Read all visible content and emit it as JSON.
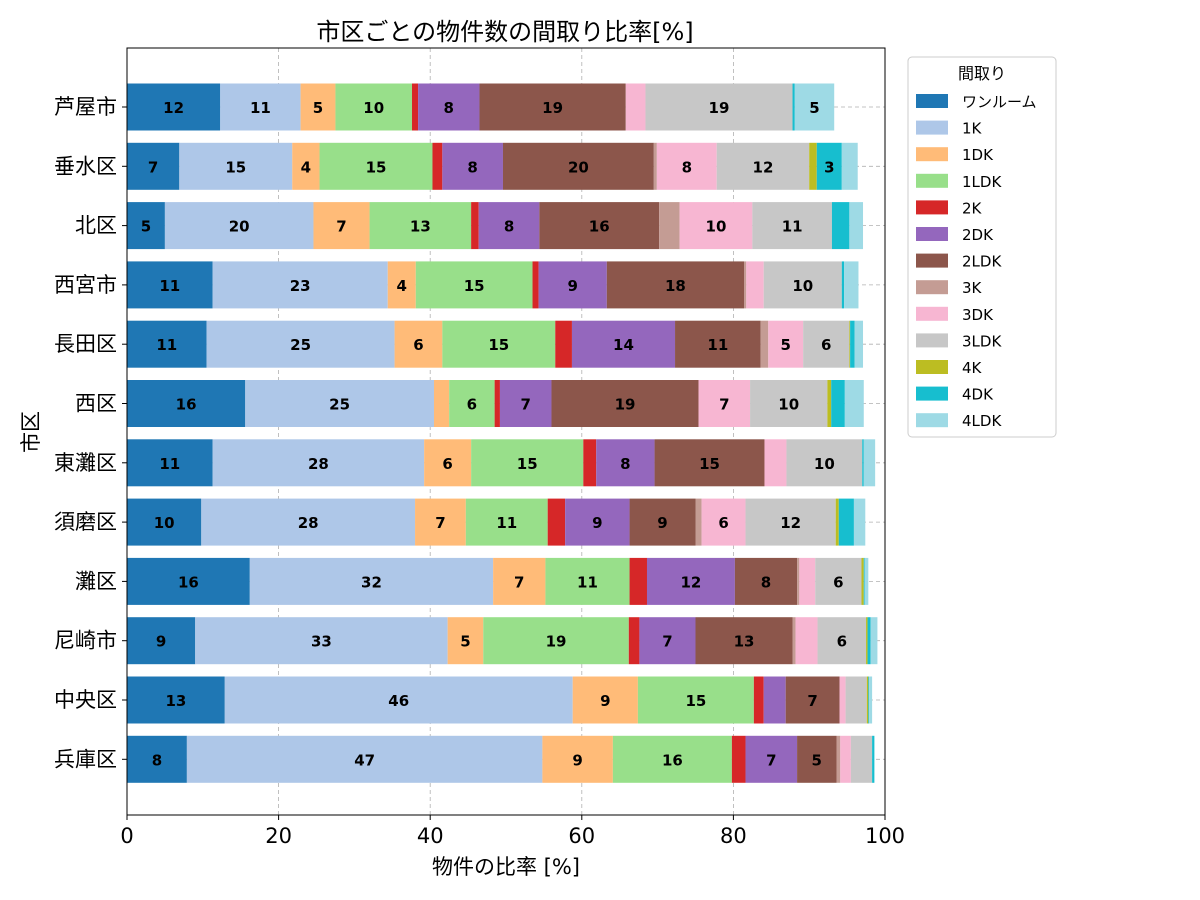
{
  "chart_data": {
    "type": "bar",
    "orientation": "horizontal",
    "stacked": true,
    "title": "市区ごとの物件数の間取り比率[%]",
    "xlabel": "物件の比率 [%]",
    "ylabel": "市区",
    "xlim": [
      0,
      100
    ],
    "xticks": [
      "0",
      "20",
      "40",
      "60",
      "80",
      "100"
    ],
    "grid": true,
    "legend_title": "間取り",
    "legend_position": "upper-right, outside plot",
    "categories": [
      "芦屋市",
      "垂水区",
      "北区",
      "西宮市",
      "長田区",
      "西区",
      "東灘区",
      "須磨区",
      "灘区",
      "尼崎市",
      "中央区",
      "兵庫区"
    ],
    "series": [
      {
        "name": "ワンルーム",
        "color": "#1f77b4",
        "values": [
          12.3,
          6.9,
          5.0,
          11.3,
          10.5,
          15.6,
          11.3,
          9.8,
          16.2,
          9.0,
          12.9,
          7.9
        ]
      },
      {
        "name": "1K",
        "color": "#aec7e8",
        "values": [
          10.6,
          14.9,
          19.6,
          23.1,
          24.8,
          24.9,
          27.9,
          28.2,
          32.1,
          33.3,
          45.9,
          46.9
        ]
      },
      {
        "name": "1DK",
        "color": "#ffbb78",
        "values": [
          4.6,
          3.6,
          7.4,
          3.7,
          6.3,
          2.0,
          6.2,
          6.7,
          6.9,
          4.7,
          8.6,
          9.3
        ]
      },
      {
        "name": "1LDK",
        "color": "#98df8a",
        "values": [
          10.1,
          14.9,
          13.4,
          15.4,
          14.9,
          6.0,
          14.8,
          10.8,
          11.1,
          19.2,
          15.3,
          15.7
        ]
      },
      {
        "name": "2K",
        "color": "#d62728",
        "values": [
          0.8,
          1.3,
          1.0,
          0.8,
          2.2,
          0.7,
          1.7,
          2.3,
          2.3,
          1.4,
          1.3,
          1.8
        ]
      },
      {
        "name": "2DK",
        "color": "#9467bd",
        "values": [
          8.1,
          8.0,
          8.0,
          9.0,
          13.6,
          6.8,
          7.7,
          8.5,
          11.6,
          7.4,
          2.9,
          6.8
        ]
      },
      {
        "name": "2LDK",
        "color": "#8c564b",
        "values": [
          19.3,
          19.9,
          15.8,
          18.1,
          11.3,
          19.4,
          14.5,
          8.7,
          8.2,
          12.8,
          7.1,
          5.2
        ]
      },
      {
        "name": "3K",
        "color": "#c49c94",
        "values": [
          0.0,
          0.4,
          2.7,
          0.3,
          1.0,
          0.0,
          0.0,
          0.8,
          0.3,
          0.4,
          0.0,
          0.5
        ]
      },
      {
        "name": "3DK",
        "color": "#f7b6d2",
        "values": [
          2.6,
          7.9,
          9.6,
          2.3,
          4.6,
          6.8,
          2.9,
          5.8,
          2.1,
          2.9,
          0.8,
          1.4
        ]
      },
      {
        "name": "3LDK",
        "color": "#c7c7c7",
        "values": [
          19.4,
          12.2,
          10.5,
          10.3,
          6.1,
          10.2,
          10.0,
          11.9,
          6.1,
          6.4,
          2.8,
          2.8
        ]
      },
      {
        "name": "4K",
        "color": "#bcbd22",
        "values": [
          0.0,
          1.0,
          0.0,
          0.0,
          0.1,
          0.5,
          0.0,
          0.4,
          0.3,
          0.2,
          0.2,
          0.0
        ]
      },
      {
        "name": "4DK",
        "color": "#17becf",
        "values": [
          0.3,
          3.3,
          2.3,
          0.3,
          0.6,
          1.8,
          0.2,
          2.0,
          0.1,
          0.4,
          0.1,
          0.3
        ]
      },
      {
        "name": "4LDK",
        "color": "#9edae5",
        "values": [
          5.2,
          2.1,
          1.8,
          1.9,
          1.1,
          2.5,
          1.5,
          1.5,
          0.5,
          0.9,
          0.4,
          0.0
        ]
      }
    ],
    "label_threshold": 3.0
  }
}
